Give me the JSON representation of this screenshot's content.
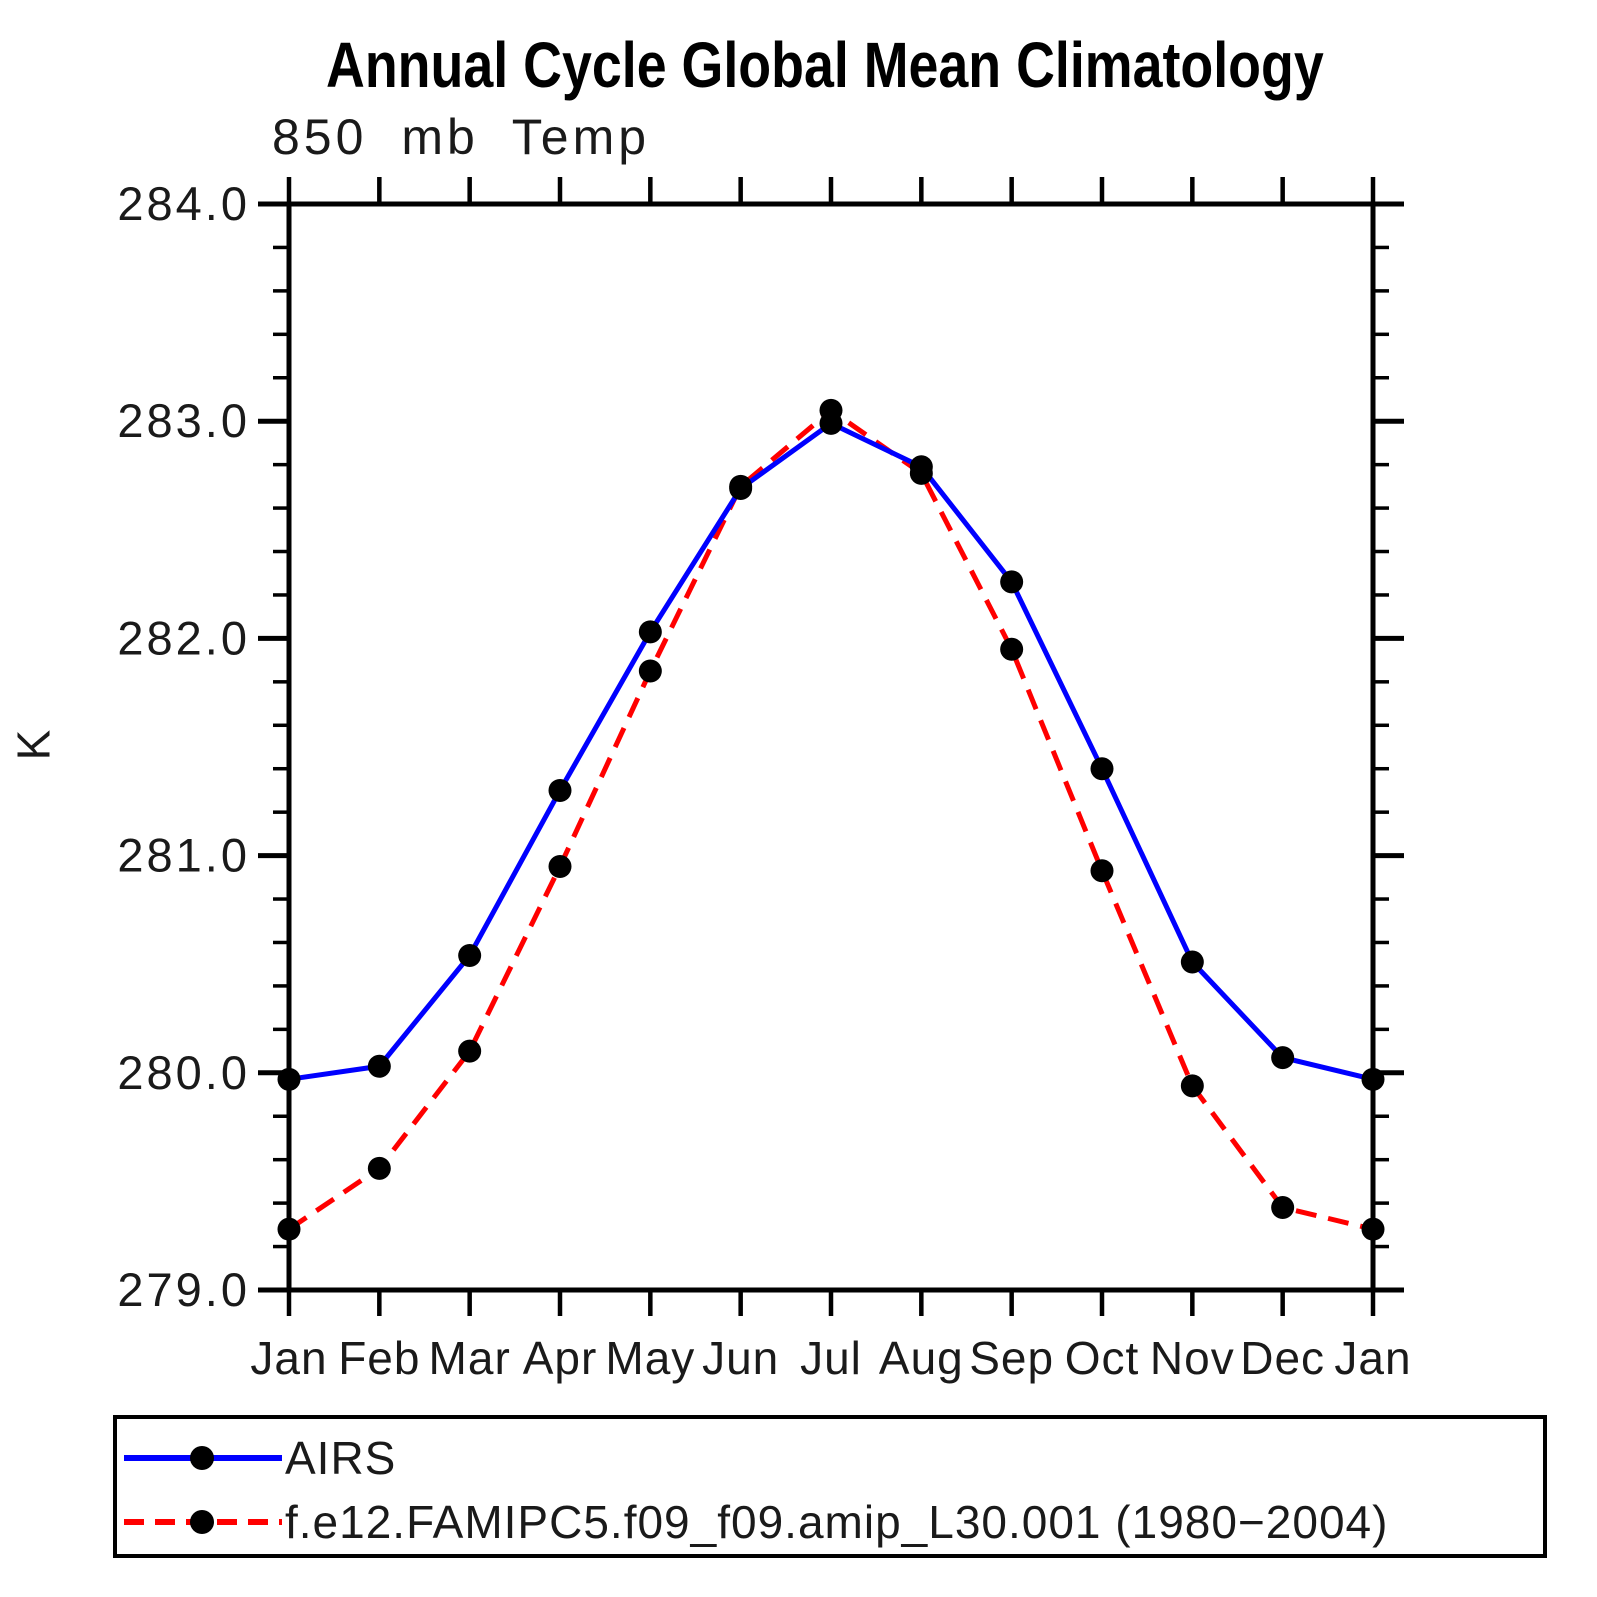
{
  "page": {
    "background": "#ffffff"
  },
  "chart_data": {
    "type": "line",
    "title": "Annual Cycle Global Mean Climatology",
    "subtitle": "850 mb Temp",
    "ylabel": "K",
    "xlabel": "",
    "categories": [
      "Jan",
      "Feb",
      "Mar",
      "Apr",
      "May",
      "Jun",
      "Jul",
      "Aug",
      "Sep",
      "Oct",
      "Nov",
      "Dec",
      "Jan"
    ],
    "ylim": [
      279.0,
      284.0
    ],
    "ytick_interval_major": 1.0,
    "ytick_interval_minor": 0.2,
    "ytick_labels": [
      "284.0",
      "283.0",
      "282.0",
      "281.0",
      "280.0",
      "279.0"
    ],
    "grid": false,
    "legend_position": "bottom-box",
    "axis_color": "#000000",
    "marker_color": "#000000",
    "series": [
      {
        "name": "AIRS",
        "line_color": "#0000ff",
        "line_style": "solid",
        "values": [
          279.97,
          280.03,
          280.54,
          281.3,
          282.03,
          282.69,
          282.99,
          282.79,
          282.26,
          281.4,
          280.51,
          280.07,
          279.97
        ]
      },
      {
        "name": "f.e12.FAMIPC5.f09_f09.amip_L30.001 (1980−2004)",
        "line_color": "#ff0000",
        "line_style": "dashed",
        "values": [
          279.28,
          279.56,
          280.1,
          280.95,
          281.85,
          282.7,
          283.05,
          282.76,
          281.95,
          280.93,
          279.94,
          279.38,
          279.28
        ]
      }
    ]
  }
}
